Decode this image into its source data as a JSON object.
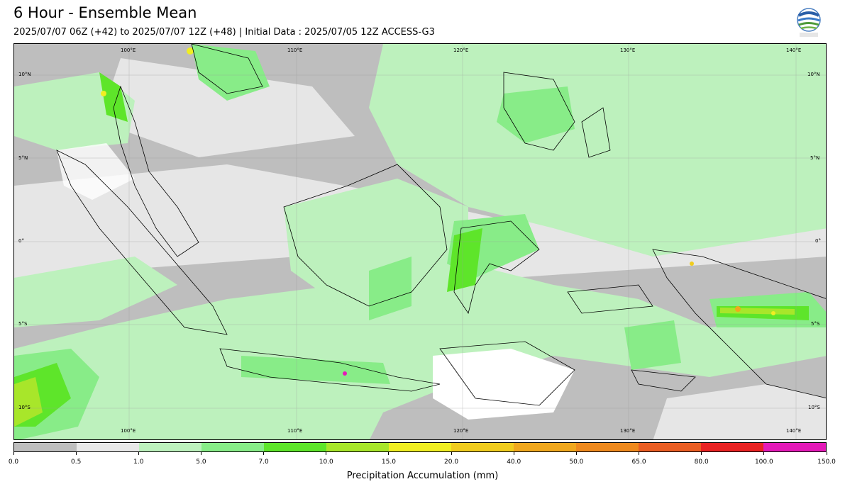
{
  "header": {
    "title": "6 Hour - Ensemble Mean",
    "subtitle": "2025/07/07 06Z (+42) to 2025/07/07 12Z (+48) | Initial Data : 2025/07/05 12Z ACCESS-G3"
  },
  "logo": {
    "text": "BMKG"
  },
  "map": {
    "top_lon_labels": [
      "100°E",
      "110°E",
      "120°E",
      "130°E",
      "140°E"
    ],
    "bottom_lon_labels": [
      "100°E",
      "110°E",
      "120°E",
      "130°E",
      "140°E"
    ],
    "left_lat_labels": [
      "10°N",
      "5°N",
      "0°",
      "5°S",
      "10°S"
    ],
    "right_lat_labels": [
      "10°N",
      "5°N",
      "0°",
      "5°S",
      "10°S"
    ]
  },
  "colorbar": {
    "label": "Precipitation Accumulation (mm)",
    "ticks": [
      "0.0",
      "0.5",
      "1.0",
      "5.0",
      "7.0",
      "10.0",
      "15.0",
      "20.0",
      "40.0",
      "50.0",
      "65.0",
      "80.0",
      "100.0",
      "150.0"
    ],
    "colors": [
      "#bebebe",
      "#e8e8e8",
      "#bdf1bd",
      "#88ec88",
      "#5ee52a",
      "#a8e62a",
      "#f0ee22",
      "#f0cc1e",
      "#f0a81e",
      "#ef8a1e",
      "#ea5e23",
      "#e92323",
      "#e41ab8"
    ]
  }
}
